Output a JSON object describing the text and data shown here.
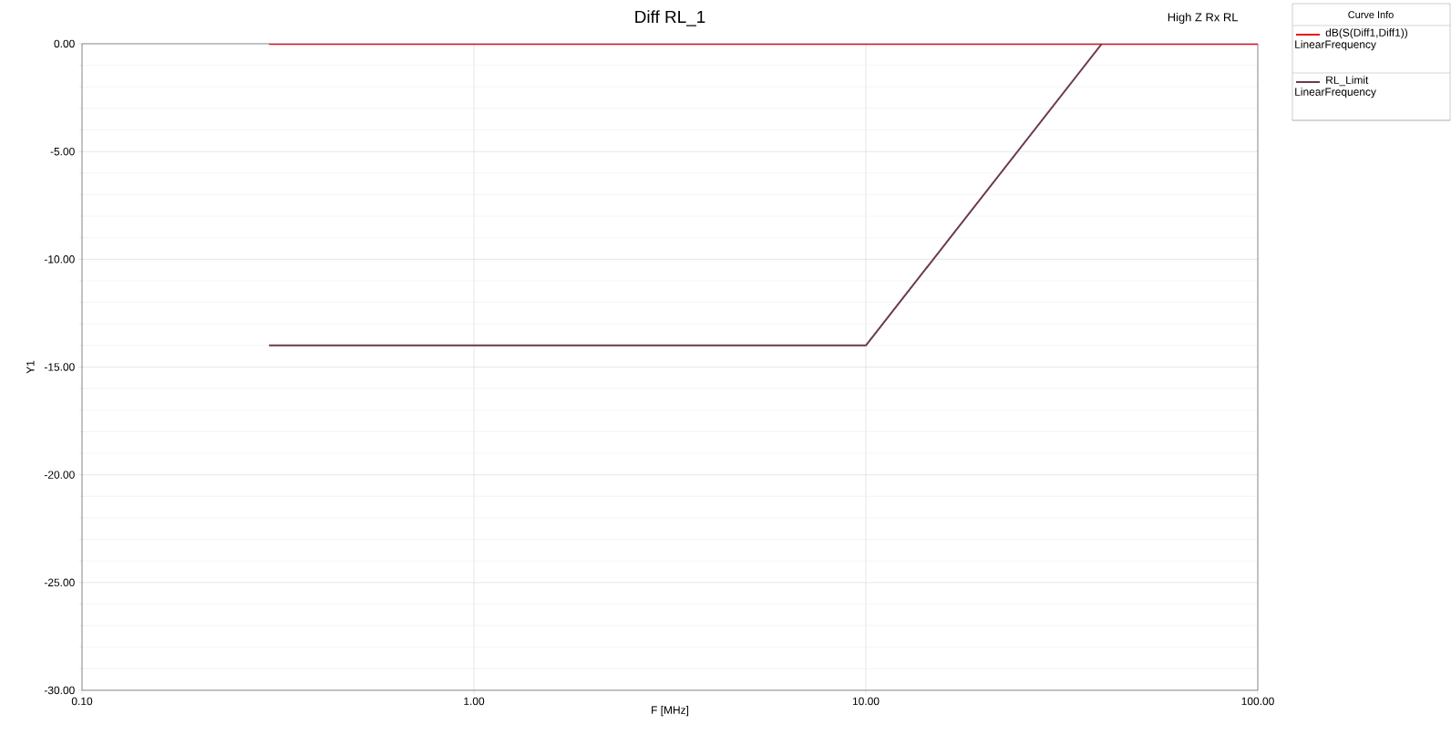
{
  "chart_data": {
    "type": "line",
    "title": "Diff RL_1",
    "xlabel": "F [MHz]",
    "ylabel": "Y1",
    "legend_title": "Curve Info",
    "annotations": [
      "High Z Rx RL"
    ],
    "log": "x",
    "grid": true,
    "legend": "right",
    "line_style": "solid",
    "xlim": [
      0.1,
      100
    ],
    "xticks": [
      {
        "value": 0.1,
        "label": "0.10"
      },
      {
        "value": 1,
        "label": "1.00"
      },
      {
        "value": 10,
        "label": "10.00"
      },
      {
        "value": 100,
        "label": "100.00"
      }
    ],
    "ylim": [
      -30,
      0
    ],
    "yticks": [
      {
        "value": -30,
        "label": "-30.00"
      },
      {
        "value": -25,
        "label": "-25.00"
      },
      {
        "value": -20,
        "label": "-20.00"
      },
      {
        "value": -15,
        "label": "-15.00"
      },
      {
        "value": -10,
        "label": "-10.00"
      },
      {
        "value": -5,
        "label": "-5.00"
      },
      {
        "value": 0,
        "label": "0.00"
      }
    ],
    "series": [
      {
        "name": "dB(S(Diff1,Diff1)) LinearFrequency",
        "color": "#e8101a",
        "x": [
          0.3,
          100
        ],
        "values": [
          0,
          0
        ]
      },
      {
        "name": "RL_Limit LinearFrequency",
        "color": "#6b3a52",
        "x": [
          0.3,
          10,
          40
        ],
        "values": [
          -14,
          -14,
          0
        ]
      }
    ]
  }
}
